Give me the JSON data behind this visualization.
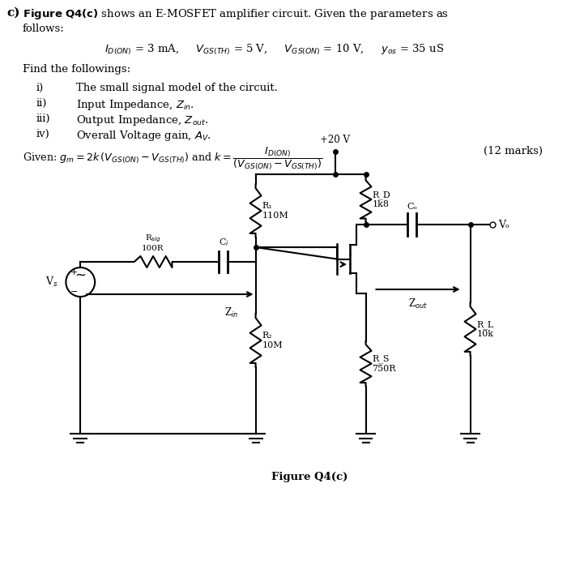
{
  "title_text": "Figure Q4(c) shows an E-MOSFET amplifier circuit. Given the parameters as\nfollows:",
  "label_c": "c)",
  "params_line": "I_{D(ON)} = 3 mA,    V_{GS(TH)} = 5 V,    V_{GS(ON)} = 10 V,    y_{os} = 35 uS",
  "find_text": "Find the followings:",
  "items": [
    [
      "i)",
      "The small signal model of the circuit."
    ],
    [
      "ii)",
      "Input Impedance, Z_{in}."
    ],
    [
      "iii)",
      "Output Impedance, Z_{out}."
    ],
    [
      "iv)",
      "Overall Voltage gain, A_V."
    ]
  ],
  "given_text": "Given: g_m = 2k (V_{GS(ON)} - V_{GS(TH)}) and k = I_{D(ON)} / (V_{GS(ON)}-V_{GS(TH)})",
  "marks_text": "(12 marks)",
  "fig_label": "Figure Q4(c)",
  "bg_color": "#ffffff",
  "line_color": "#000000",
  "component_labels": {
    "R1": "R₁\n110M",
    "R2": "R₂\n10M",
    "RD": "R_D\n1k8",
    "RS": "R_S\n750R",
    "RL": "R_L\n10k",
    "Rsig": "R_{sig}\n100R",
    "Ci": "C_i",
    "Co": "C_o",
    "Vdd": "+20 V",
    "Vo": "V_o",
    "Vs": "V_s",
    "Zin": "Z_{in}",
    "Zout": "Z_{out}"
  }
}
